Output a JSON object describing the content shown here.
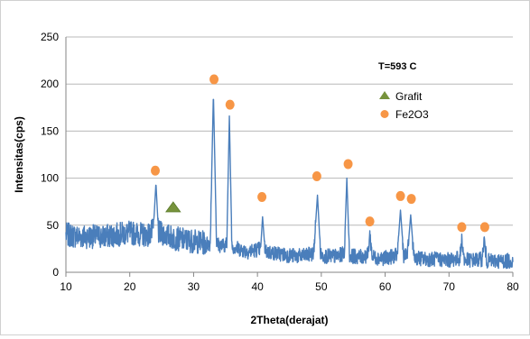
{
  "chart_data": {
    "type": "line",
    "title": "",
    "annotation": "T=593 C",
    "xlabel": "2Theta(derajat)",
    "ylabel": "Intensitas(cps)",
    "xlim": [
      10,
      80
    ],
    "ylim": [
      0,
      250
    ],
    "x_ticks": [
      10,
      20,
      30,
      40,
      50,
      60,
      70,
      80
    ],
    "y_ticks": [
      0,
      50,
      100,
      150,
      200,
      250
    ],
    "grid": "horizontal",
    "legend_position": "top-right",
    "legend": [
      {
        "label": "Grafit",
        "marker": "triangle",
        "color": "#77933c"
      },
      {
        "label": "Fe2O3",
        "marker": "circle",
        "color": "#f79646"
      }
    ],
    "line_color": "#4a7ebb",
    "series": [
      {
        "x": [
          10,
          12,
          14,
          16,
          18,
          20,
          22,
          23,
          23.7,
          24.1,
          24.5,
          25.5,
          27,
          29,
          31,
          32.6,
          33.1,
          33.6,
          34.5,
          35.2,
          35.6,
          36.0,
          37,
          38.5,
          40.5,
          40.8,
          41.2,
          43,
          45,
          47,
          48.8,
          49.4,
          49.9,
          51,
          52.5,
          53.6,
          54.0,
          54.4,
          56,
          57.3,
          57.6,
          58,
          60,
          61.9,
          62.4,
          62.9,
          63.5,
          64.0,
          64.5,
          66,
          68,
          70,
          71.7,
          72.0,
          72.4,
          74,
          75.2,
          75.5,
          75.9,
          78,
          80
        ],
        "values": [
          40,
          38,
          38,
          38,
          40,
          42,
          40,
          40,
          45,
          95,
          42,
          40,
          36,
          34,
          32,
          30,
          190,
          30,
          28,
          30,
          166,
          28,
          25,
          22,
          25,
          59,
          22,
          20,
          18,
          17,
          20,
          82,
          18,
          17,
          17,
          20,
          100,
          18,
          16,
          18,
          40,
          16,
          15,
          18,
          66,
          18,
          18,
          61,
          16,
          14,
          14,
          13,
          15,
          35,
          13,
          13,
          14,
          35,
          12,
          12,
          12
        ],
        "noise": 8
      }
    ],
    "markers": [
      {
        "series": "Fe2O3",
        "x": 24.0,
        "y": 108
      },
      {
        "series": "Fe2O3",
        "x": 33.2,
        "y": 205
      },
      {
        "series": "Fe2O3",
        "x": 35.7,
        "y": 178
      },
      {
        "series": "Fe2O3",
        "x": 40.7,
        "y": 80
      },
      {
        "series": "Fe2O3",
        "x": 49.3,
        "y": 102
      },
      {
        "series": "Fe2O3",
        "x": 54.2,
        "y": 115
      },
      {
        "series": "Fe2O3",
        "x": 57.6,
        "y": 54
      },
      {
        "series": "Fe2O3",
        "x": 62.4,
        "y": 81
      },
      {
        "series": "Fe2O3",
        "x": 64.1,
        "y": 78
      },
      {
        "series": "Fe2O3",
        "x": 72.0,
        "y": 48
      },
      {
        "series": "Fe2O3",
        "x": 75.6,
        "y": 48
      },
      {
        "series": "Grafit",
        "x": 26.8,
        "y": 69
      }
    ]
  }
}
